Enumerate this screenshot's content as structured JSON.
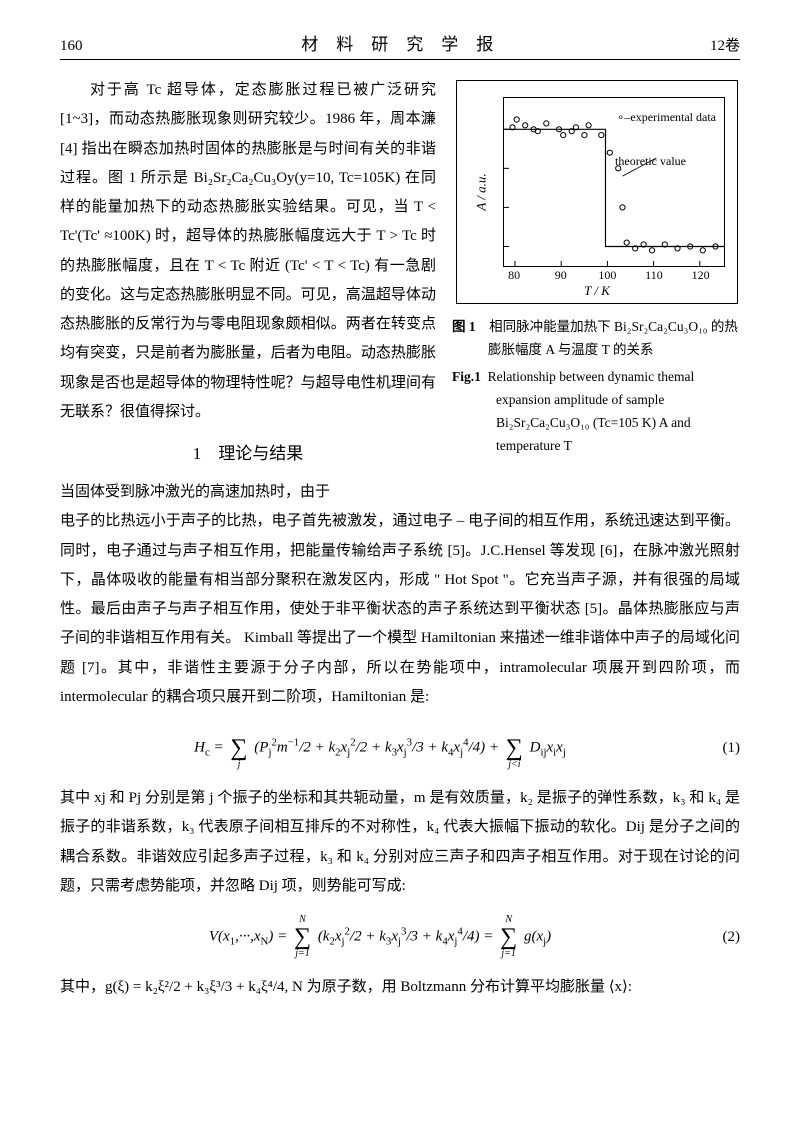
{
  "header": {
    "page": "160",
    "journal": "材料研究学报",
    "volume": "12卷"
  },
  "para1": "对于高 Tc 超导体，定态膨胀过程已被广泛研究 [1~3]，而动态热膨胀现象则研究较少。1986 年，周本濂 [4] 指出在瞬态加热时固体的热膨胀是与时间有关的非谐过程。图 1 所示是 Bi₂Sr₂Ca₂Cu₃Oy(y=10, Tc=105K) 在同样的能量加热下的动态热膨胀实验结果。可见，当 T < Tc'(Tc' ≈100K) 时，超导体的热膨胀幅度远大于 T > Tc 时的热膨胀幅度，且在 T < Tc 附近 (Tc' < T < Tc) 有一急剧的变化。这与定态热膨胀明显不同。可见，高温超导体动态热膨胀的反常行为与零电阻现象颇相似。两者在转变点均有突变，只是前者为膨胀量，后者为电阻。动态热膨胀现象是否也是超导体的物理特性呢？与超导电性机理间有无联系？很值得探讨。",
  "section1": "1　理论与结果",
  "para2": "当固体受到脉冲激光的高速加热时，由于",
  "para2b": "电子的比热远小于声子的比热，电子首先被激发，通过电子 – 电子间的相互作用，系统迅速达到平衡。同时，电子通过与声子相互作用，把能量传输给声子系统 [5]。J.C.Hensel 等发现 [6]，在脉冲激光照射下，晶体吸收的能量有相当部分聚积在激发区内，形成 \" Hot Spot \"。它充当声子源，并有很强的局域性。最后由声子与声子相互作用，使处于非平衡状态的声子系统达到平衡状态 [5]。晶体热膨胀应与声子间的非谐相互作用有关。 Kimball 等提出了一个模型 Hamiltonian 来描述一维非谐体中声子的局域化问题 [7]。其中，非谐性主要源于分子内部，所以在势能项中，intramolecular 项展开到四阶项，而 intermolecular 的耦合项只展开到二阶项，Hamiltonian 是:",
  "eq1": "Hc = Σj (Pj² m⁻¹/2 + k₂xj²/2 + k₃xj³/3 + k₄xj⁴/4) + Σj<i Dij xi xj",
  "eq1num": "(1)",
  "para3": "其中 xj 和 Pj 分别是第 j 个振子的坐标和其共轭动量，m 是有效质量，k₂ 是振子的弹性系数，k₃ 和 k₄ 是振子的非谐系数，k₃ 代表原子间相互排斥的不对称性，k₄ 代表大振幅下振动的软化。Dij 是分子之间的耦合系数。非谐效应引起多声子过程，k₃ 和 k₄ 分别对应三声子和四声子相互作用。对于现在讨论的问题，只需考虑势能项，并忽略 Dij 项，则势能可写成:",
  "eq2": "V(x₁,···,xN) = Σj=1..N (k₂xj²/2 + k₃xj³/3 + k₄xj⁴/4) = Σj=1..N g(xj)",
  "eq2num": "(2)",
  "para4": "其中，g(ξ) = k₂ξ²/2 + k₃ξ³/3 + k₄ξ⁴/4, N 为原子数，用 Boltzmann 分布计算平均膨胀量 ⟨x⟩:",
  "figure": {
    "ylabel": "A / a.u.",
    "xlabel": "T / K",
    "legend_exp": "∘–experimental data",
    "legend_theo": "theoretic value",
    "xticks": [
      {
        "pos": 0.05,
        "label": "80"
      },
      {
        "pos": 0.26,
        "label": "90"
      },
      {
        "pos": 0.47,
        "label": "100"
      },
      {
        "pos": 0.68,
        "label": "110"
      },
      {
        "pos": 0.89,
        "label": "120"
      }
    ],
    "points_high": [
      [
        78,
        4.05
      ],
      [
        79,
        4.25
      ],
      [
        81,
        4.1
      ],
      [
        83,
        4.0
      ],
      [
        84,
        3.95
      ],
      [
        86,
        4.15
      ],
      [
        89,
        4.0
      ],
      [
        90,
        3.85
      ],
      [
        92,
        3.95
      ],
      [
        93,
        4.05
      ],
      [
        95,
        3.85
      ],
      [
        96,
        4.1
      ],
      [
        99,
        3.85
      ]
    ],
    "points_drop": [
      [
        101,
        3.4
      ],
      [
        103,
        3.0
      ],
      [
        104,
        2.0
      ]
    ],
    "points_low": [
      [
        105,
        1.1
      ],
      [
        107,
        0.95
      ],
      [
        109,
        1.05
      ],
      [
        111,
        0.9
      ],
      [
        114,
        1.05
      ],
      [
        117,
        0.95
      ],
      [
        120,
        1.0
      ],
      [
        123,
        0.9
      ],
      [
        126,
        1.0
      ]
    ],
    "theo_line": [
      [
        76,
        4.0
      ],
      [
        100,
        4.0
      ],
      [
        100,
        1.0
      ],
      [
        128,
        1.0
      ]
    ],
    "x_range": [
      76,
      128
    ],
    "y_range": [
      0.5,
      4.8
    ]
  },
  "caption": {
    "cn_label": "图 1",
    "cn_text": "相同脉冲能量加热下 Bi₂Sr₂Ca₂Cu₃O₁₀ 的热膨胀幅度 A 与温度 T 的关系",
    "en_label": "Fig.1",
    "en_text": "Relationship between dynamic themal expansion amplitude of sample Bi₂Sr₂Ca₂Cu₃O₁₀ (Tc=105 K) A and temperature T"
  }
}
